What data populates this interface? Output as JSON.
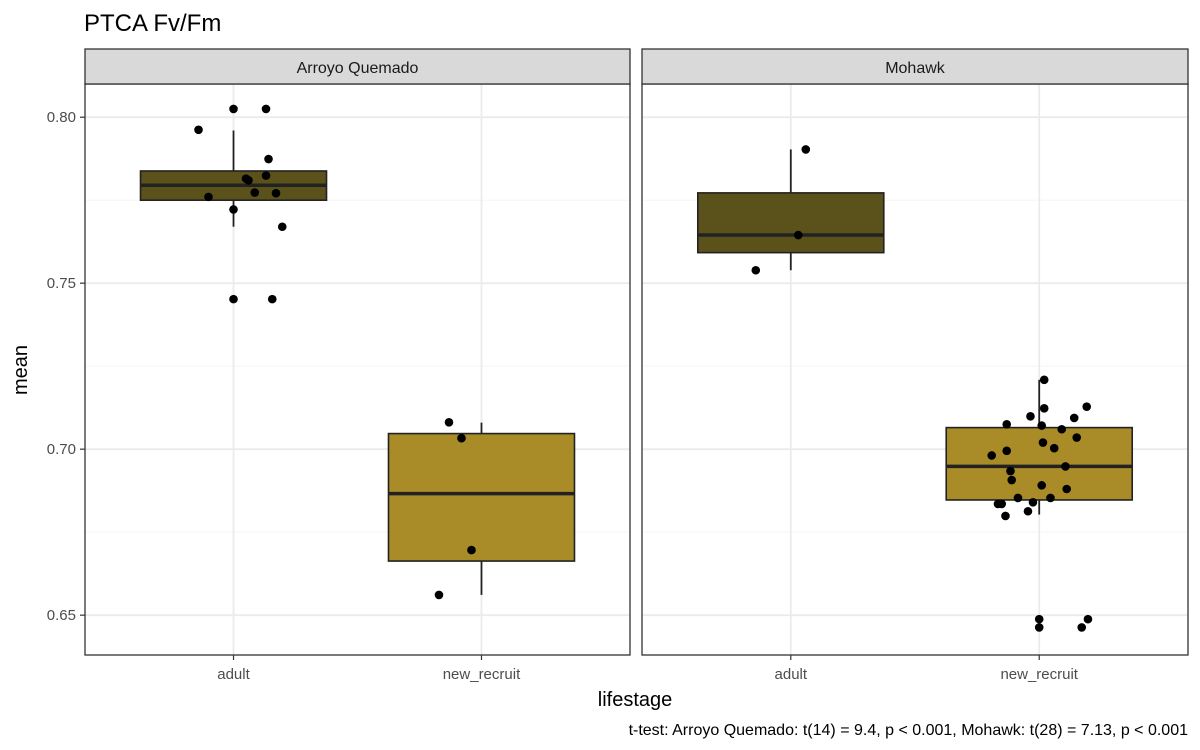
{
  "chart_data": {
    "type": "box",
    "title": "PTCA Fv/Fm",
    "xlabel": "lifestage",
    "ylabel": "mean",
    "caption": "t-test: Arroyo Quemado: t(14) = 9.4, p < 0.001, Mohawk: t(28) = 7.13, p < 0.001",
    "ylim": [
      0.638,
      0.81
    ],
    "y_ticks": [
      "0.65",
      "0.70",
      "0.75",
      "0.80"
    ],
    "y_tick_values": [
      0.65,
      0.7,
      0.75,
      0.8
    ],
    "categories": [
      "adult",
      "new_recruit"
    ],
    "grid": true,
    "legend": "none",
    "colors": {
      "adult": "#5b511b",
      "new_recruit": "#a98c28",
      "strip_bg": "#d9d9d9",
      "grid_major": "#ebebeb",
      "grid_minor": "#f5f5f5",
      "panel_border": "#333333",
      "point": "#000000"
    },
    "facets": [
      {
        "name": "Arroyo Quemado",
        "boxes": [
          {
            "category": "adult",
            "q1": 0.775,
            "median": 0.7795,
            "q3": 0.7838,
            "whisker_low": 0.767,
            "whisker_high": 0.796,
            "points": [
              {
                "x": -0.28,
                "y": 0.7962
              },
              {
                "x": 0.0,
                "y": 0.8025
              },
              {
                "x": 0.26,
                "y": 0.8025
              },
              {
                "x": 0.28,
                "y": 0.7874
              },
              {
                "x": 0.26,
                "y": 0.7824
              },
              {
                "x": 0.1,
                "y": 0.7815
              },
              {
                "x": 0.12,
                "y": 0.781
              },
              {
                "x": 0.17,
                "y": 0.7773
              },
              {
                "x": 0.34,
                "y": 0.7771
              },
              {
                "x": -0.2,
                "y": 0.776
              },
              {
                "x": 0.0,
                "y": 0.7722
              },
              {
                "x": 0.39,
                "y": 0.767
              },
              {
                "x": 0.0,
                "y": 0.7452
              },
              {
                "x": 0.31,
                "y": 0.7452
              }
            ]
          },
          {
            "category": "new_recruit",
            "q1": 0.6663,
            "median": 0.6866,
            "q3": 0.7047,
            "whisker_low": 0.6561,
            "whisker_high": 0.708,
            "points": [
              {
                "x": -0.26,
                "y": 0.7081
              },
              {
                "x": -0.16,
                "y": 0.7033
              },
              {
                "x": -0.08,
                "y": 0.6696
              },
              {
                "x": -0.34,
                "y": 0.6561
              }
            ]
          }
        ]
      },
      {
        "name": "Mohawk",
        "boxes": [
          {
            "category": "adult",
            "q1": 0.7592,
            "median": 0.7645,
            "q3": 0.7772,
            "whisker_low": 0.7539,
            "whisker_high": 0.7903,
            "points": [
              {
                "x": 0.12,
                "y": 0.7903
              },
              {
                "x": 0.06,
                "y": 0.7645
              },
              {
                "x": -0.28,
                "y": 0.7539
              }
            ]
          },
          {
            "category": "new_recruit",
            "q1": 0.6847,
            "median": 0.6948,
            "q3": 0.7065,
            "whisker_low": 0.6803,
            "whisker_high": 0.7209,
            "points": [
              {
                "x": 0.04,
                "y": 0.7209
              },
              {
                "x": 0.38,
                "y": 0.7128
              },
              {
                "x": 0.04,
                "y": 0.7123
              },
              {
                "x": -0.07,
                "y": 0.7099
              },
              {
                "x": 0.28,
                "y": 0.7094
              },
              {
                "x": -0.26,
                "y": 0.7075
              },
              {
                "x": 0.02,
                "y": 0.7071
              },
              {
                "x": 0.18,
                "y": 0.706
              },
              {
                "x": 0.3,
                "y": 0.7035
              },
              {
                "x": 0.03,
                "y": 0.702
              },
              {
                "x": 0.12,
                "y": 0.7003
              },
              {
                "x": -0.26,
                "y": 0.6995
              },
              {
                "x": -0.38,
                "y": 0.6981
              },
              {
                "x": 0.21,
                "y": 0.6948
              },
              {
                "x": -0.23,
                "y": 0.6934
              },
              {
                "x": -0.22,
                "y": 0.6907
              },
              {
                "x": 0.02,
                "y": 0.6891
              },
              {
                "x": 0.22,
                "y": 0.688
              },
              {
                "x": -0.17,
                "y": 0.6853
              },
              {
                "x": 0.09,
                "y": 0.6853
              },
              {
                "x": -0.05,
                "y": 0.684
              },
              {
                "x": -0.3,
                "y": 0.6835
              },
              {
                "x": -0.33,
                "y": 0.6835
              },
              {
                "x": -0.09,
                "y": 0.6813
              },
              {
                "x": -0.27,
                "y": 0.6799
              },
              {
                "x": 0.0,
                "y": 0.6488
              },
              {
                "x": 0.0,
                "y": 0.6463
              },
              {
                "x": 0.39,
                "y": 0.6488
              },
              {
                "x": 0.34,
                "y": 0.6463
              }
            ]
          }
        ]
      }
    ]
  }
}
